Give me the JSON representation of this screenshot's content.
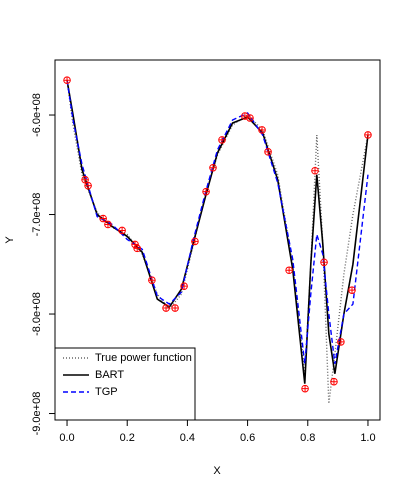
{
  "chart_data": {
    "type": "line",
    "x_label": "X",
    "y_label": "Y",
    "xlim": [
      -0.04,
      1.04
    ],
    "ylim": [
      -906500000,
      -544700000
    ],
    "xticks": [
      {
        "value": 0,
        "label": "0.0"
      },
      {
        "value": 0.2,
        "label": "0.2"
      },
      {
        "value": 0.4,
        "label": "0.4"
      },
      {
        "value": 0.6,
        "label": "0.6"
      },
      {
        "value": 0.8,
        "label": "0.8"
      },
      {
        "value": 1,
        "label": "1.0"
      }
    ],
    "yticks": [
      {
        "value": -600000000,
        "label": "-6.0e+08"
      },
      {
        "value": -700000000,
        "label": "-7.0e+08"
      },
      {
        "value": -800000000,
        "label": "-8.0e+08"
      },
      {
        "value": -900000000,
        "label": "-9.0e+08"
      }
    ],
    "legend_position": "bottomleft",
    "series": [
      {
        "name": "True power function",
        "color": "#666666",
        "style": "dotted",
        "x": [
          0,
          0.02,
          0.05,
          0.1,
          0.15,
          0.2,
          0.25,
          0.3,
          0.34,
          0.38,
          0.42,
          0.46,
          0.5,
          0.55,
          0.6,
          0.65,
          0.7,
          0.75,
          0.79,
          0.81,
          0.83,
          0.85,
          0.87,
          0.89,
          0.92,
          0.95,
          1.0
        ],
        "values": [
          -565000000,
          -610000000,
          -660000000,
          -698000000,
          -713000000,
          -720000000,
          -740000000,
          -780000000,
          -795000000,
          -780000000,
          -730000000,
          -680000000,
          -640000000,
          -610000000,
          -600000000,
          -615000000,
          -660000000,
          -750000000,
          -860000000,
          -750000000,
          -620000000,
          -730000000,
          -890000000,
          -840000000,
          -760000000,
          -700000000,
          -620000000
        ]
      },
      {
        "name": "BART",
        "color": "#000000",
        "style": "solid",
        "x": [
          0,
          0.02,
          0.05,
          0.1,
          0.15,
          0.2,
          0.25,
          0.3,
          0.34,
          0.38,
          0.42,
          0.46,
          0.5,
          0.55,
          0.6,
          0.65,
          0.7,
          0.75,
          0.79,
          0.81,
          0.83,
          0.85,
          0.87,
          0.89,
          0.92,
          0.95,
          1.0
        ],
        "values": [
          -565000000,
          -600000000,
          -655000000,
          -700000000,
          -712000000,
          -722000000,
          -738000000,
          -785000000,
          -793000000,
          -775000000,
          -728000000,
          -682000000,
          -638000000,
          -608000000,
          -602000000,
          -618000000,
          -665000000,
          -755000000,
          -870000000,
          -750000000,
          -660000000,
          -730000000,
          -820000000,
          -860000000,
          -800000000,
          -750000000,
          -620000000
        ]
      },
      {
        "name": "TGP",
        "color": "#0000ff",
        "style": "dashed",
        "x": [
          0,
          0.02,
          0.05,
          0.1,
          0.15,
          0.2,
          0.25,
          0.3,
          0.34,
          0.38,
          0.42,
          0.46,
          0.5,
          0.55,
          0.6,
          0.65,
          0.7,
          0.75,
          0.79,
          0.81,
          0.83,
          0.85,
          0.87,
          0.89,
          0.92,
          0.95,
          1.0
        ],
        "values": [
          -565000000,
          -605000000,
          -650000000,
          -702000000,
          -710000000,
          -725000000,
          -735000000,
          -782000000,
          -790000000,
          -778000000,
          -725000000,
          -678000000,
          -635000000,
          -605000000,
          -598000000,
          -620000000,
          -668000000,
          -745000000,
          -850000000,
          -780000000,
          -720000000,
          -740000000,
          -800000000,
          -850000000,
          -800000000,
          -790000000,
          -660000000
        ]
      }
    ],
    "points": {
      "color": "#ff0000",
      "x": [
        0,
        0.06,
        0.07,
        0.12,
        0.136,
        0.183,
        0.226,
        0.233,
        0.282,
        0.329,
        0.359,
        0.389,
        0.425,
        0.462,
        0.485,
        0.515,
        0.591,
        0.608,
        0.648,
        0.668,
        0.738,
        0.791,
        0.824,
        0.854,
        0.887,
        0.91,
        0.947,
        1.0
      ],
      "values": [
        -565000000,
        -665000000,
        -671000000,
        -704000000,
        -710000000,
        -716000000,
        -730000000,
        -734000000,
        -766000000,
        -794000000,
        -794000000,
        -772000000,
        -727000000,
        -677000000,
        -653000000,
        -625000000,
        -601000000,
        -603000000,
        -615000000,
        -637000000,
        -756000000,
        -875000000,
        -656000000,
        -748000000,
        -868000000,
        -828000000,
        -776000000,
        -620000000
      ]
    }
  }
}
